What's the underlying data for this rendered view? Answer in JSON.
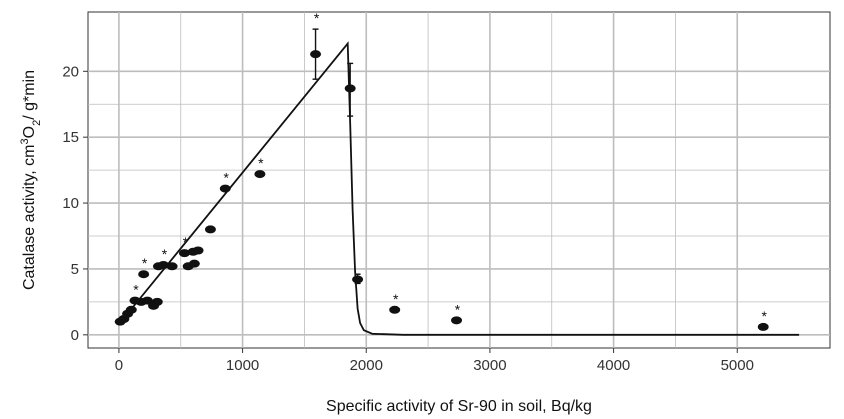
{
  "chart_data": {
    "type": "scatter",
    "title": "",
    "xlabel": "Specific activity of Sr-90 in soil, Bq/kg",
    "ylabel": "Catalase activity, cm³O₂/ g*min",
    "ylabel_parts": {
      "pre": "Catalase activity, cm",
      "sup": "3",
      "mid": "O",
      "sub": "2",
      "post": "/ g*min"
    },
    "xlim": [
      -250,
      5750
    ],
    "ylim": [
      -1.0,
      24.5
    ],
    "x_ticks": [
      0,
      1000,
      2000,
      3000,
      4000,
      5000
    ],
    "y_ticks": [
      0,
      5,
      10,
      15,
      20
    ],
    "grid": true,
    "background": "#ffffff",
    "grid_color": "#bdbdbd",
    "point_color": "#111111",
    "star_label": "*",
    "points": [
      {
        "x": 10,
        "y": 1.0,
        "star": false
      },
      {
        "x": 40,
        "y": 1.2,
        "star": false
      },
      {
        "x": 70,
        "y": 1.6,
        "star": false
      },
      {
        "x": 100,
        "y": 1.9,
        "star": false
      },
      {
        "x": 130,
        "y": 2.6,
        "star": true
      },
      {
        "x": 180,
        "y": 2.5,
        "star": false
      },
      {
        "x": 200,
        "y": 4.6,
        "star": true
      },
      {
        "x": 230,
        "y": 2.6,
        "star": false
      },
      {
        "x": 280,
        "y": 2.2,
        "star": false
      },
      {
        "x": 310,
        "y": 2.5,
        "star": false
      },
      {
        "x": 320,
        "y": 5.2,
        "star": false
      },
      {
        "x": 360,
        "y": 5.3,
        "star": true
      },
      {
        "x": 430,
        "y": 5.2,
        "star": false
      },
      {
        "x": 530,
        "y": 6.2,
        "star": true
      },
      {
        "x": 560,
        "y": 5.2,
        "star": false
      },
      {
        "x": 600,
        "y": 6.3,
        "star": false
      },
      {
        "x": 610,
        "y": 5.4,
        "star": false
      },
      {
        "x": 640,
        "y": 6.4,
        "star": false
      },
      {
        "x": 740,
        "y": 8.0,
        "star": false
      },
      {
        "x": 860,
        "y": 11.1,
        "star": true
      },
      {
        "x": 1140,
        "y": 12.2,
        "star": true
      },
      {
        "x": 1590,
        "y": 21.3,
        "star": true,
        "err": [
          19.4,
          23.2
        ]
      },
      {
        "x": 1870,
        "y": 18.7,
        "star": false,
        "err": [
          16.6,
          20.6
        ]
      },
      {
        "x": 1930,
        "y": 4.2,
        "star": false,
        "err": [
          3.9,
          4.6
        ]
      },
      {
        "x": 2230,
        "y": 1.9,
        "star": true
      },
      {
        "x": 2730,
        "y": 1.1,
        "star": true
      },
      {
        "x": 5210,
        "y": 0.6,
        "star": true
      }
    ],
    "fit_line": [
      [
        0,
        0.8
      ],
      [
        1850,
        22.1
      ],
      [
        1870,
        16.0
      ],
      [
        1890,
        9.5
      ],
      [
        1910,
        4.8
      ],
      [
        1930,
        2.0
      ],
      [
        1950,
        0.9
      ],
      [
        1980,
        0.35
      ],
      [
        2050,
        0.08
      ],
      [
        2300,
        0.0
      ],
      [
        5500,
        0.0
      ]
    ]
  }
}
